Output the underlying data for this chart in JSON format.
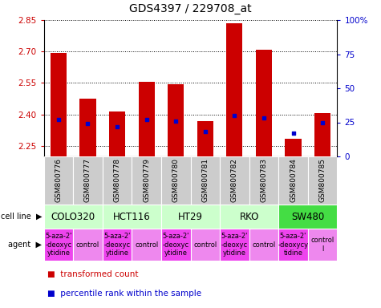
{
  "title": "GDS4397 / 229708_at",
  "samples": [
    "GSM800776",
    "GSM800777",
    "GSM800778",
    "GSM800779",
    "GSM800780",
    "GSM800781",
    "GSM800782",
    "GSM800783",
    "GSM800784",
    "GSM800785"
  ],
  "transformed_counts": [
    2.695,
    2.475,
    2.415,
    2.555,
    2.545,
    2.37,
    2.835,
    2.71,
    2.285,
    2.405
  ],
  "percentile_ranks": [
    27,
    24,
    22,
    27,
    26,
    18,
    30,
    28,
    17,
    25
  ],
  "ylim": [
    2.2,
    2.85
  ],
  "yticks": [
    2.25,
    2.4,
    2.55,
    2.7,
    2.85
  ],
  "y2lim": [
    0,
    100
  ],
  "y2ticks": [
    0,
    25,
    50,
    75,
    100
  ],
  "y2ticklabels": [
    "0",
    "25",
    "50",
    "75",
    "100%"
  ],
  "bar_color": "#cc0000",
  "dot_color": "#0000cc",
  "bar_width": 0.55,
  "cell_lines": [
    {
      "label": "COLO320",
      "start": 0,
      "end": 2,
      "color": "#ccffcc"
    },
    {
      "label": "HCT116",
      "start": 2,
      "end": 4,
      "color": "#ccffcc"
    },
    {
      "label": "HT29",
      "start": 4,
      "end": 6,
      "color": "#ccffcc"
    },
    {
      "label": "RKO",
      "start": 6,
      "end": 8,
      "color": "#ccffcc"
    },
    {
      "label": "SW480",
      "start": 8,
      "end": 10,
      "color": "#44dd44"
    }
  ],
  "agents": [
    {
      "label": "5-aza-2'\n-deoxyc\nytidine",
      "start": 0,
      "end": 1,
      "color": "#ee44ee"
    },
    {
      "label": "control",
      "start": 1,
      "end": 2,
      "color": "#ee88ee"
    },
    {
      "label": "5-aza-2'\n-deoxyc\nytidine",
      "start": 2,
      "end": 3,
      "color": "#ee44ee"
    },
    {
      "label": "control",
      "start": 3,
      "end": 4,
      "color": "#ee88ee"
    },
    {
      "label": "5-aza-2'\n-deoxyc\nytidine",
      "start": 4,
      "end": 5,
      "color": "#ee44ee"
    },
    {
      "label": "control",
      "start": 5,
      "end": 6,
      "color": "#ee88ee"
    },
    {
      "label": "5-aza-2'\n-deoxyc\nytidine",
      "start": 6,
      "end": 7,
      "color": "#ee44ee"
    },
    {
      "label": "control",
      "start": 7,
      "end": 8,
      "color": "#ee88ee"
    },
    {
      "label": "5-aza-2'\n-deoxycy\ntidine",
      "start": 8,
      "end": 9,
      "color": "#ee44ee"
    },
    {
      "label": "control\nl",
      "start": 9,
      "end": 10,
      "color": "#ee88ee"
    }
  ],
  "gsm_bg_color": "#cccccc",
  "left_label_color": "#cc0000",
  "right_label_color": "#0000cc",
  "grid_color": "#000000",
  "title_fontsize": 10,
  "tick_fontsize": 7.5,
  "sample_fontsize": 6.5,
  "cell_fontsize": 8.5,
  "agent_fontsize": 6
}
